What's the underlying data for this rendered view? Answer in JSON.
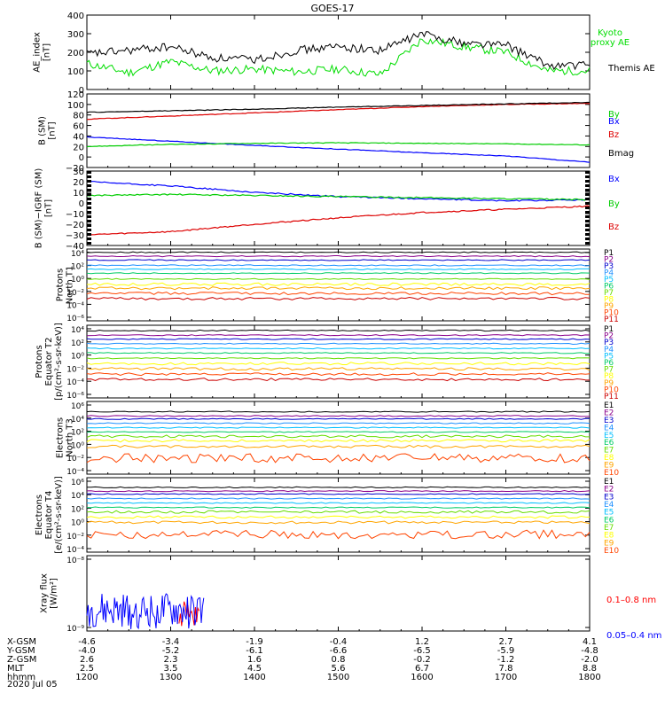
{
  "title": "GOES-17",
  "date_label": "2020 Jul 05",
  "colors": {
    "P": [
      "#000000",
      "#8b008b",
      "#0000cd",
      "#1e90ff",
      "#00bfff",
      "#00cc66",
      "#66dd00",
      "#ffff00",
      "#ffa500",
      "#ff4500",
      "#cc0000"
    ],
    "E": [
      "#000000",
      "#8b008b",
      "#0000cd",
      "#1e90ff",
      "#00bfff",
      "#00cc66",
      "#66dd00",
      "#ffff00",
      "#ffa500",
      "#ff4500",
      "#cc0000"
    ],
    "bx": "#0000ff",
    "by": "#00cc00",
    "bz": "#dd0000",
    "bmag": "#000000",
    "ae_kyoto": "#00dd00",
    "ae_themis": "#000000",
    "xray_long": "#ff0000",
    "xray_short": "#0000ff"
  },
  "orbit": {
    "row_labels": [
      "X-GSM",
      "Y-GSM",
      "Z-GSM",
      "MLT",
      "hhmm"
    ],
    "columns": [
      {
        "X-GSM": "-4.6",
        "Y-GSM": "-4.0",
        "Z-GSM": "2.6",
        "MLT": "2.5",
        "hhmm": "1200"
      },
      {
        "X-GSM": "-3.4",
        "Y-GSM": "-5.2",
        "Z-GSM": "2.3",
        "MLT": "3.5",
        "hhmm": "1300"
      },
      {
        "X-GSM": "-1.9",
        "Y-GSM": "-6.1",
        "Z-GSM": "1.6",
        "MLT": "4.5",
        "hhmm": "1400"
      },
      {
        "X-GSM": "-0.4",
        "Y-GSM": "-6.6",
        "Z-GSM": "0.8",
        "MLT": "5.6",
        "hhmm": "1500"
      },
      {
        "X-GSM": "1.2",
        "Y-GSM": "-6.5",
        "Z-GSM": "-0.2",
        "MLT": "6.7",
        "hhmm": "1600"
      },
      {
        "X-GSM": "2.7",
        "Y-GSM": "-5.9",
        "Z-GSM": "-1.2",
        "MLT": "7.8",
        "hhmm": "1700"
      },
      {
        "X-GSM": "4.1",
        "Y-GSM": "-4.8",
        "Z-GSM": "-2.0",
        "MLT": "8.8",
        "hhmm": "1800"
      }
    ]
  },
  "chart_data": [
    {
      "type": "line",
      "ylabel": "AE_index\n[nT]",
      "ylim": [
        0,
        400
      ],
      "yticks": [
        "0",
        "100",
        "200",
        "300",
        "400"
      ],
      "x": [
        1200,
        1230,
        1300,
        1330,
        1400,
        1430,
        1500,
        1530,
        1600,
        1630,
        1700,
        1730,
        1800
      ],
      "series": [
        {
          "name": "Kyoto\nproxy AE",
          "values": [
            140,
            90,
            150,
            100,
            110,
            95,
            110,
            80,
            270,
            230,
            200,
            100,
            100
          ]
        },
        {
          "name": "Themis AE",
          "values": [
            190,
            210,
            230,
            170,
            160,
            210,
            230,
            210,
            300,
            250,
            240,
            130,
            130
          ]
        }
      ]
    },
    {
      "type": "line",
      "ylabel": "B (SM)\n[nT]",
      "ylim": [
        -20,
        120
      ],
      "yticks": [
        "−20",
        "0",
        "20",
        "40",
        "60",
        "80",
        "100",
        "120"
      ],
      "x": [
        1200,
        1300,
        1400,
        1500,
        1600,
        1700,
        1800
      ],
      "series": [
        {
          "name": "Bx",
          "values": [
            38,
            30,
            22,
            15,
            8,
            2,
            -10
          ]
        },
        {
          "name": "By",
          "values": [
            20,
            24,
            26,
            27,
            26,
            25,
            23
          ]
        },
        {
          "name": "Bz",
          "values": [
            72,
            78,
            84,
            90,
            96,
            100,
            102
          ]
        },
        {
          "name": "Bmag",
          "values": [
            85,
            88,
            91,
            95,
            98,
            101,
            104
          ]
        }
      ]
    },
    {
      "type": "line",
      "ylabel": "B (SM)−IGRF (SM)\n[nT]",
      "ylim": [
        -40,
        30
      ],
      "yticks": [
        "−40",
        "−30",
        "−20",
        "−10",
        "0",
        "10",
        "20",
        "30"
      ],
      "x": [
        1200,
        1300,
        1400,
        1500,
        1600,
        1700,
        1800
      ],
      "series": [
        {
          "name": "Bx",
          "values": [
            20,
            16,
            10,
            6,
            4,
            2,
            3
          ]
        },
        {
          "name": "By",
          "values": [
            7,
            8,
            7,
            6,
            5,
            4,
            3
          ]
        },
        {
          "name": "Bz",
          "values": [
            -30,
            -27,
            -20,
            -14,
            -9,
            -6,
            -3
          ]
        }
      ]
    },
    {
      "type": "line",
      "ylabel": "Protons\nNorth T1",
      "yscale": "log",
      "ylim": [
        -7,
        4
      ],
      "yticks": [
        "10⁴",
        "10²",
        "10⁰",
        "10⁻²",
        "10⁻⁴",
        "10⁻⁶"
      ],
      "series": [
        {
          "name": "P1",
          "log10": 3.5
        },
        {
          "name": "P2",
          "log10": 2.9
        },
        {
          "name": "P3",
          "log10": 2.3
        },
        {
          "name": "P4",
          "log10": 1.5
        },
        {
          "name": "P5",
          "log10": 0.9
        },
        {
          "name": "P6",
          "log10": 0.3
        },
        {
          "name": "P7",
          "log10": -0.6
        },
        {
          "name": "P8",
          "log10": -1.4
        },
        {
          "name": "P9",
          "log10": -2.0
        },
        {
          "name": "P10",
          "log10": -2.8
        },
        {
          "name": "P11",
          "log10": -3.6
        }
      ]
    },
    {
      "type": "line",
      "ylabel": "Protons\nEquator T2\n[p/(cm²-s-sr-keV)]",
      "yscale": "log",
      "ylim": [
        -7,
        4
      ],
      "yticks": [
        "10⁴",
        "10²",
        "10⁰",
        "10⁻²",
        "10⁻⁴",
        "10⁻⁶"
      ],
      "series": [
        {
          "name": "P1",
          "log10": 3.2
        },
        {
          "name": "P2",
          "log10": 2.5
        },
        {
          "name": "P3",
          "log10": 1.9
        },
        {
          "name": "P4",
          "log10": 1.2
        },
        {
          "name": "P5",
          "log10": 0.5
        },
        {
          "name": "P6",
          "log10": -0.2
        },
        {
          "name": "P7",
          "log10": -1.0
        },
        {
          "name": "P8",
          "log10": -1.8
        },
        {
          "name": "P9",
          "log10": -2.6
        },
        {
          "name": "P10",
          "log10": -3.4
        },
        {
          "name": "P11",
          "log10": -4.2
        }
      ]
    },
    {
      "type": "line",
      "ylabel": "Electrons\nNorth T3",
      "yscale": "log",
      "ylim": [
        -4,
        6
      ],
      "yticks": [
        "10⁶",
        "10⁴",
        "10²",
        "10⁰",
        "10⁻²",
        "10⁻⁴"
      ],
      "series": [
        {
          "name": "E1",
          "log10": 4.6
        },
        {
          "name": "E2",
          "log10": 4.0
        },
        {
          "name": "E3",
          "log10": 3.6
        },
        {
          "name": "E4",
          "log10": 3.0
        },
        {
          "name": "E5",
          "log10": 2.4
        },
        {
          "name": "E6",
          "log10": 1.8
        },
        {
          "name": "E7",
          "log10": 1.2
        },
        {
          "name": "E8",
          "log10": 0.6
        },
        {
          "name": "E9",
          "log10": -0.2
        },
        {
          "name": "E10",
          "log10": -1.8
        }
      ]
    },
    {
      "type": "line",
      "ylabel": "Electrons\nEquator T4\n[e/(cm²-s-sr-keV)]",
      "yscale": "log",
      "ylim": [
        -4,
        6
      ],
      "yticks": [
        "10⁶",
        "10⁴",
        "10²",
        "10⁰",
        "10⁻²",
        "10⁻⁴"
      ],
      "series": [
        {
          "name": "E1",
          "log10": 4.7
        },
        {
          "name": "E2",
          "log10": 4.2
        },
        {
          "name": "E3",
          "log10": 3.8
        },
        {
          "name": "E4",
          "log10": 3.2
        },
        {
          "name": "E5",
          "log10": 2.6
        },
        {
          "name": "E6",
          "log10": 2.0
        },
        {
          "name": "E7",
          "log10": 1.4
        },
        {
          "name": "E8",
          "log10": 0.7
        },
        {
          "name": "E9",
          "log10": 0.0
        },
        {
          "name": "E10",
          "log10": -1.6
        }
      ]
    },
    {
      "type": "line",
      "ylabel": "Xray flux\n[W/m²]",
      "yscale": "log",
      "ylim": [
        -9,
        -8
      ],
      "yticks": [
        "10⁻⁸",
        "10⁻⁹"
      ],
      "series": [
        {
          "name": "0.1–0.8 nm"
        },
        {
          "name": "0.05–0.4 nm"
        }
      ]
    }
  ]
}
